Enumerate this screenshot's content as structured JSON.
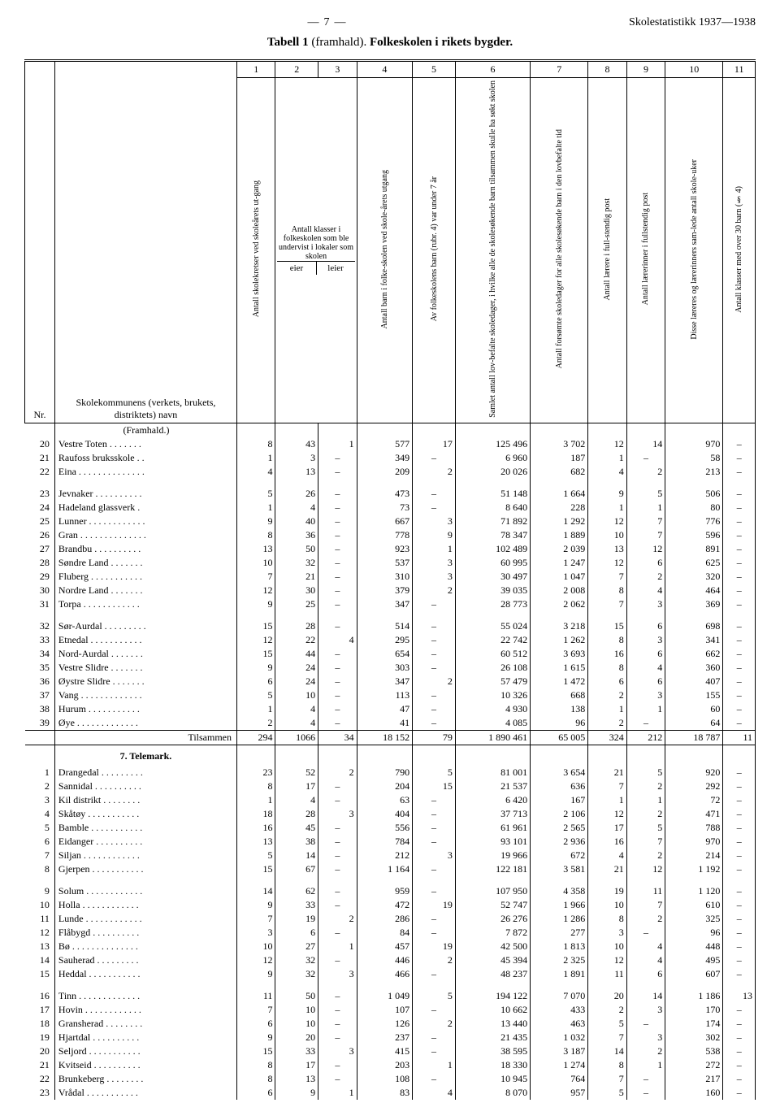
{
  "header": {
    "page_number": "7",
    "doc_title": "Skolestatistikk 1937—1938"
  },
  "table_title_prefix": "Tabell 1",
  "table_title_paren": "(framhald).",
  "table_title_bold": "Folkeskolen i rikets bygder.",
  "columns": {
    "nr": "Nr.",
    "name": "Skolekommunens (verkets, brukets, distriktets) navn",
    "c1": "Antall skolekretser ved skoleårets ut-gang",
    "c2_3_top": "Antall klasser i folkeskolen som ble undervist i lokaler som skolen",
    "c2": "eier",
    "c3": "leier",
    "c4": "Antall barn i folke-skolen ved skole-årets utgang",
    "c5": "Av folkeskolens barn (rubr. 4) var under 7 år",
    "c6": "Samlet antall lov-befalte skoledager, i hvilke alle de skolesøkende barn tilsammen skulle ha søkt skolen",
    "c7": "Antall forsømte skoledager for alle skolesøkende barn i den lovbefalte tid",
    "c8": "Antall lærere i full-stendig post",
    "c9": "Antall lærerinner i fullstendig post",
    "c10": "Disse læreres og lærerinners sam-lede antall skole-uker",
    "c11": "Antall klasser med over 30 barn (§ 4)"
  },
  "framhald_label": "(Framhald.)",
  "section_telemark": "7. Telemark.",
  "tilsammen_label": "Tilsammen",
  "rows_top": [
    {
      "nr": "20",
      "name": "Vestre Toten . . . . . . .",
      "v": [
        "8",
        "43",
        "1",
        "577",
        "17",
        "125 496",
        "3 702",
        "12",
        "14",
        "970",
        "–"
      ]
    },
    {
      "nr": "21",
      "name": "Raufoss bruksskole . .",
      "v": [
        "1",
        "3",
        "–",
        "349",
        "–",
        "6 960",
        "187",
        "1",
        "–",
        "58",
        "–"
      ]
    },
    {
      "nr": "22",
      "name": "Eina . . . . . . . . . . . . . .",
      "v": [
        "4",
        "13",
        "–",
        "209",
        "2",
        "20 026",
        "682",
        "4",
        "2",
        "213",
        "–"
      ]
    }
  ],
  "rows_group2": [
    {
      "nr": "23",
      "name": "Jevnaker . . . . . . . . . .",
      "v": [
        "5",
        "26",
        "–",
        "473",
        "–",
        "51 148",
        "1 664",
        "9",
        "5",
        "506",
        "–"
      ]
    },
    {
      "nr": "24",
      "name": "Hadeland glassverk .",
      "v": [
        "1",
        "4",
        "–",
        "73",
        "–",
        "8 640",
        "228",
        "1",
        "1",
        "80",
        "–"
      ]
    },
    {
      "nr": "25",
      "name": "Lunner . . . . . . . . . . . .",
      "v": [
        "9",
        "40",
        "–",
        "667",
        "3",
        "71 892",
        "1 292",
        "12",
        "7",
        "776",
        "–"
      ]
    },
    {
      "nr": "26",
      "name": "Gran . . . . . . . . . . . . . .",
      "v": [
        "8",
        "36",
        "–",
        "778",
        "9",
        "78 347",
        "1 889",
        "10",
        "7",
        "596",
        "–"
      ]
    },
    {
      "nr": "27",
      "name": "Brandbu . . . . . . . . . .",
      "v": [
        "13",
        "50",
        "–",
        "923",
        "1",
        "102 489",
        "2 039",
        "13",
        "12",
        "891",
        "–"
      ]
    },
    {
      "nr": "28",
      "name": "Søndre Land . . . . . . .",
      "v": [
        "10",
        "32",
        "–",
        "537",
        "3",
        "60 995",
        "1 247",
        "12",
        "6",
        "625",
        "–"
      ]
    },
    {
      "nr": "29",
      "name": "Fluberg . . . . . . . . . . .",
      "v": [
        "7",
        "21",
        "–",
        "310",
        "3",
        "30 497",
        "1 047",
        "7",
        "2",
        "320",
        "–"
      ]
    },
    {
      "nr": "30",
      "name": "Nordre Land . . . . . . .",
      "v": [
        "12",
        "30",
        "–",
        "379",
        "2",
        "39 035",
        "2 008",
        "8",
        "4",
        "464",
        "–"
      ]
    },
    {
      "nr": "31",
      "name": "Torpa . . . . . . . . . . . .",
      "v": [
        "9",
        "25",
        "–",
        "347",
        "–",
        "28 773",
        "2 062",
        "7",
        "3",
        "369",
        "–"
      ]
    }
  ],
  "rows_group3": [
    {
      "nr": "32",
      "name": "Sør-Aurdal . . . . . . . . .",
      "v": [
        "15",
        "28",
        "–",
        "514",
        "–",
        "55 024",
        "3 218",
        "15",
        "6",
        "698",
        "–"
      ]
    },
    {
      "nr": "33",
      "name": "Etnedal . . . . . . . . . . .",
      "v": [
        "12",
        "22",
        "4",
        "295",
        "–",
        "22 742",
        "1 262",
        "8",
        "3",
        "341",
        "–"
      ]
    },
    {
      "nr": "34",
      "name": "Nord-Aurdal . . . . . . .",
      "v": [
        "15",
        "44",
        "–",
        "654",
        "–",
        "60 512",
        "3 693",
        "16",
        "6",
        "662",
        "–"
      ]
    },
    {
      "nr": "35",
      "name": "Vestre Slidre . . . . . . .",
      "v": [
        "9",
        "24",
        "–",
        "303",
        "–",
        "26 108",
        "1 615",
        "8",
        "4",
        "360",
        "–"
      ]
    },
    {
      "nr": "36",
      "name": "Øystre Slidre . . . . . . .",
      "v": [
        "6",
        "24",
        "–",
        "347",
        "2",
        "57 479",
        "1 472",
        "6",
        "6",
        "407",
        "–"
      ]
    },
    {
      "nr": "37",
      "name": "Vang . . . . . . . . . . . . .",
      "v": [
        "5",
        "10",
        "–",
        "113",
        "–",
        "10 326",
        "668",
        "2",
        "3",
        "155",
        "–"
      ]
    },
    {
      "nr": "38",
      "name": "Hurum . . . . . . . . . . .",
      "v": [
        "1",
        "4",
        "–",
        "47",
        "–",
        "4 930",
        "138",
        "1",
        "1",
        "60",
        "–"
      ]
    },
    {
      "nr": "39",
      "name": "Øye . . . . . . . . . . . . .",
      "v": [
        "2",
        "4",
        "–",
        "41",
        "–",
        "4 085",
        "96",
        "2",
        "–",
        "64",
        "–"
      ]
    }
  ],
  "total_row": [
    "294",
    "1066",
    "34",
    "18 152",
    "79",
    "1 890 461",
    "65 005",
    "324",
    "212",
    "18 787",
    "11"
  ],
  "rows_telemark1": [
    {
      "nr": "1",
      "name": "Drangedal . . . . . . . . .",
      "v": [
        "23",
        "52",
        "2",
        "790",
        "5",
        "81 001",
        "3 654",
        "21",
        "5",
        "920",
        "–"
      ]
    },
    {
      "nr": "2",
      "name": "Sannidal . . . . . . . . . .",
      "v": [
        "8",
        "17",
        "–",
        "204",
        "15",
        "21 537",
        "636",
        "7",
        "2",
        "292",
        "–"
      ]
    },
    {
      "nr": "3",
      "name": "Kil distrikt . . . . . . . .",
      "v": [
        "1",
        "4",
        "–",
        "63",
        "–",
        "6 420",
        "167",
        "1",
        "1",
        "72",
        "–"
      ]
    },
    {
      "nr": "4",
      "name": "Skåtøy . . . . . . . . . . .",
      "v": [
        "18",
        "28",
        "3",
        "404",
        "–",
        "37 713",
        "2 106",
        "12",
        "2",
        "471",
        "–"
      ]
    },
    {
      "nr": "5",
      "name": "Bamble . . . . . . . . . . .",
      "v": [
        "16",
        "45",
        "–",
        "556",
        "–",
        "61 961",
        "2 565",
        "17",
        "5",
        "788",
        "–"
      ]
    },
    {
      "nr": "6",
      "name": "Eidanger . . . . . . . . . .",
      "v": [
        "13",
        "38",
        "–",
        "784",
        "–",
        "93 101",
        "2 936",
        "16",
        "7",
        "970",
        "–"
      ]
    },
    {
      "nr": "7",
      "name": "Siljan . . . . . . . . . . . .",
      "v": [
        "5",
        "14",
        "–",
        "212",
        "3",
        "19 966",
        "672",
        "4",
        "2",
        "214",
        "–"
      ]
    },
    {
      "nr": "8",
      "name": "Gjerpen . . . . . . . . . . .",
      "v": [
        "15",
        "67",
        "–",
        "1 164",
        "–",
        "122 181",
        "3 581",
        "21",
        "12",
        "1 192",
        "–"
      ]
    }
  ],
  "rows_telemark2": [
    {
      "nr": "9",
      "name": "Solum . . . . . . . . . . . .",
      "v": [
        "14",
        "62",
        "–",
        "959",
        "–",
        "107 950",
        "4 358",
        "19",
        "11",
        "1 120",
        "–"
      ]
    },
    {
      "nr": "10",
      "name": "Holla . . . . . . . . . . . .",
      "v": [
        "9",
        "33",
        "–",
        "472",
        "19",
        "52 747",
        "1 966",
        "10",
        "7",
        "610",
        "–"
      ]
    },
    {
      "nr": "11",
      "name": "Lunde . . . . . . . . . . . .",
      "v": [
        "7",
        "19",
        "2",
        "286",
        "–",
        "26 276",
        "1 286",
        "8",
        "2",
        "325",
        "–"
      ]
    },
    {
      "nr": "12",
      "name": "Flåbygd . . . . . . . . . .",
      "v": [
        "3",
        "6",
        "–",
        "84",
        "–",
        "7 872",
        "277",
        "3",
        "–",
        "96",
        "–"
      ]
    },
    {
      "nr": "13",
      "name": "Bø . . . . . . . . . . . . . .",
      "v": [
        "10",
        "27",
        "1",
        "457",
        "19",
        "42 500",
        "1 813",
        "10",
        "4",
        "448",
        "–"
      ]
    },
    {
      "nr": "14",
      "name": "Sauherad . . . . . . . . .",
      "v": [
        "12",
        "32",
        "–",
        "446",
        "2",
        "45 394",
        "2 325",
        "12",
        "4",
        "495",
        "–"
      ]
    },
    {
      "nr": "15",
      "name": "Heddal . . . . . . . . . . .",
      "v": [
        "9",
        "32",
        "3",
        "466",
        "–",
        "48 237",
        "1 891",
        "11",
        "6",
        "607",
        "–"
      ]
    }
  ],
  "rows_telemark3": [
    {
      "nr": "16",
      "name": "Tinn . . . . . . . . . . . . .",
      "v": [
        "11",
        "50",
        "–",
        "1 049",
        "5",
        "194 122",
        "7 070",
        "20",
        "14",
        "1 186",
        "13"
      ]
    },
    {
      "nr": "17",
      "name": "Hovin . . . . . . . . . . . .",
      "v": [
        "7",
        "10",
        "–",
        "107",
        "–",
        "10 662",
        "433",
        "2",
        "3",
        "170",
        "–"
      ]
    },
    {
      "nr": "18",
      "name": "Gransherad . . . . . . . .",
      "v": [
        "6",
        "10",
        "–",
        "126",
        "2",
        "13 440",
        "463",
        "5",
        "–",
        "174",
        "–"
      ]
    },
    {
      "nr": "19",
      "name": "Hjartdal . . . . . . . . . .",
      "v": [
        "9",
        "20",
        "–",
        "237",
        "–",
        "21 435",
        "1 032",
        "7",
        "3",
        "302",
        "–"
      ]
    },
    {
      "nr": "20",
      "name": "Seljord . . . . . . . . . . .",
      "v": [
        "15",
        "33",
        "3",
        "415",
        "–",
        "38 595",
        "3 187",
        "14",
        "2",
        "538",
        "–"
      ]
    },
    {
      "nr": "21",
      "name": "Kvitseid . . . . . . . . . .",
      "v": [
        "8",
        "17",
        "–",
        "203",
        "1",
        "18 330",
        "1 274",
        "8",
        "1",
        "272",
        "–"
      ]
    },
    {
      "nr": "22",
      "name": "Brunkeberg . . . . . . . .",
      "v": [
        "8",
        "13",
        "–",
        "108",
        "–",
        "10 945",
        "764",
        "7",
        "–",
        "217",
        "–"
      ]
    },
    {
      "nr": "23",
      "name": "Vrådal . . . . . . . . . . .",
      "v": [
        "6",
        "9",
        "1",
        "83",
        "4",
        "8 070",
        "957",
        "5",
        "–",
        "160",
        "–"
      ]
    }
  ]
}
